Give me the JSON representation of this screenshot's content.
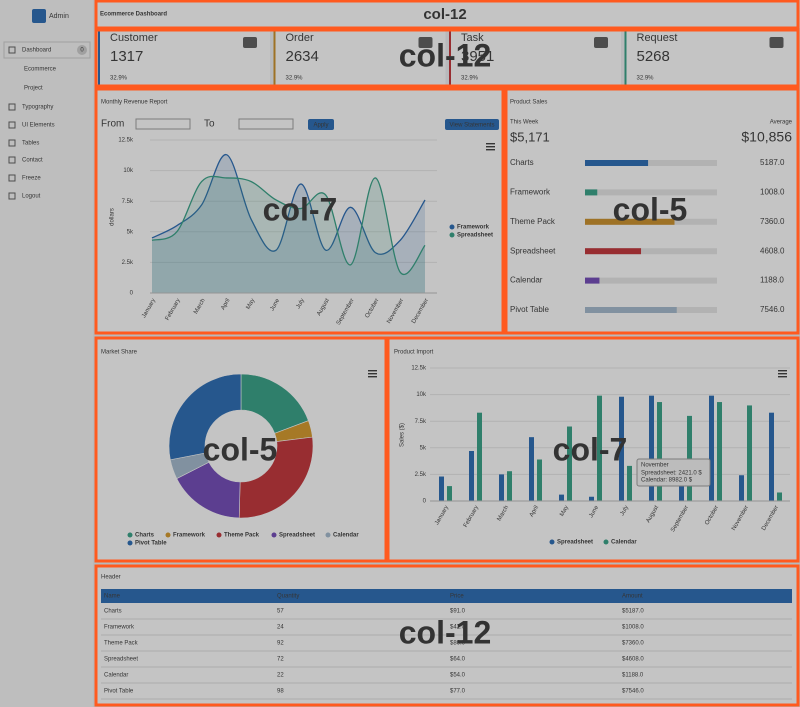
{
  "sidebar": {
    "brand": "Admin",
    "menu": [
      {
        "label": "Dashboard",
        "badge": "0"
      },
      {
        "label": "Ecommerce"
      },
      {
        "label": "Project"
      },
      {
        "label": "Typography"
      },
      {
        "label": "UI Elements"
      },
      {
        "label": "Tables"
      },
      {
        "label": "Contact"
      },
      {
        "label": "Freeze"
      },
      {
        "label": "Logout"
      }
    ]
  },
  "header": {
    "title": "Ecommerce Dashboard"
  },
  "stats": [
    {
      "label": "Customer",
      "value": "1317",
      "change": "32.9%",
      "color": "#1e63b0"
    },
    {
      "label": "Order",
      "value": "2634",
      "change": "32.9%",
      "color": "#c98a1e"
    },
    {
      "label": "Task",
      "value": "3951",
      "change": "32.9%",
      "color": "#c0282d"
    },
    {
      "label": "Request",
      "value": "5268",
      "change": "32.9%",
      "color": "#2a9d80"
    }
  ],
  "revenue_chart": {
    "type": "area",
    "title": "Monthly Revenue Report",
    "from_label": "From",
    "to_label": "To",
    "apply": "Apply",
    "view": "View Statements",
    "y_label": "dollars",
    "categories": [
      "January",
      "February",
      "March",
      "April",
      "May",
      "June",
      "July",
      "August",
      "September",
      "October",
      "November",
      "December"
    ],
    "ylim": [
      0,
      12500
    ],
    "yticks": [
      0,
      {
        "value": 2500,
        "label": "2.5k"
      },
      {
        "value": 5000,
        "label": "5k"
      },
      {
        "value": 7500,
        "label": "7.5k"
      },
      {
        "value": 10000,
        "label": "10k"
      },
      {
        "value": 12500,
        "label": "12.5k"
      }
    ],
    "grid": true,
    "series": [
      {
        "name": "Framework",
        "color": "#1e63b0",
        "values": [
          4500,
          5500,
          7200,
          11300,
          6000,
          3500,
          8900,
          3500,
          7000,
          3300,
          4300,
          7600
        ]
      },
      {
        "name": "Spreadsheet",
        "color": "#2a9d80",
        "values": [
          4300,
          5000,
          9100,
          9400,
          9100,
          7600,
          6900,
          8000,
          2300,
          9400,
          1700,
          3900
        ]
      }
    ]
  },
  "product_sales": {
    "title": "Product Sales",
    "this_week_label": "This Week",
    "this_week": "$5,171",
    "average_label": "Average",
    "average": {
      "value": 10856,
      "label": "$10,856"
    },
    "items": [
      {
        "name": "Charts",
        "value": 5187,
        "label": "5187.0",
        "color": "#1e63b0"
      },
      {
        "name": "Framework",
        "value": 1008,
        "label": "1008.0",
        "color": "#2a9d80"
      },
      {
        "name": "Theme Pack",
        "value": 7360,
        "label": "7360.0",
        "color": "#c98a1e"
      },
      {
        "name": "Spreadsheet",
        "value": 4608,
        "label": "4608.0",
        "color": "#c0282d"
      },
      {
        "name": "Calendar",
        "value": 1188,
        "label": "1188.0",
        "color": "#6a3fb5"
      },
      {
        "name": "Pivot Table",
        "value": 7546,
        "label": "7546.0",
        "color": "#9fb7cc"
      }
    ]
  },
  "market_share": {
    "type": "donut",
    "title": "Market Share",
    "categories": [
      "Charts",
      "Framework",
      "Theme Pack",
      "Spreadsheet",
      "Calendar",
      "Pivot Table"
    ],
    "values": [
      5187,
      1008,
      7360,
      4608,
      1188,
      7546
    ],
    "colors": [
      "#2a9d80",
      "#d4941e",
      "#c0282d",
      "#6a3fb5",
      "#9fb7cc",
      "#1e63b0"
    ]
  },
  "product_import": {
    "type": "bar",
    "title": "Product Import",
    "y_label": "Sales ($)",
    "categories": [
      "January",
      "February",
      "March",
      "April",
      "May",
      "June",
      "July",
      "August",
      "September",
      "October",
      "November",
      "December"
    ],
    "ylim": [
      0,
      12500
    ],
    "yticks": [
      0,
      {
        "value": 2500,
        "label": "2.5k"
      },
      {
        "value": 5000,
        "label": "5k"
      },
      {
        "value": 7500,
        "label": "7.5k"
      },
      {
        "value": 10000,
        "label": "10k"
      },
      {
        "value": 12500,
        "label": "12.5k"
      }
    ],
    "grid": true,
    "series": [
      {
        "name": "Spreadsheet",
        "color": "#1e63b0",
        "values": [
          2300,
          4700,
          2500,
          6000,
          600,
          400,
          9800,
          9900,
          3000,
          9900,
          2421,
          8300
        ]
      },
      {
        "name": "Calendar",
        "color": "#2a9d80",
        "values": [
          1400,
          8300,
          2800,
          3900,
          7000,
          9900,
          3300,
          9300,
          8000,
          9300,
          8982,
          800
        ]
      }
    ],
    "tooltip": {
      "title": "November",
      "lines": [
        "Spreadsheet: 2421.0 $",
        "Calendar: 8982.0 $"
      ]
    }
  },
  "table": {
    "title": "Header",
    "columns": [
      "Name",
      "Quantity",
      "Price",
      "Amount"
    ],
    "rows": [
      [
        "Charts",
        "57",
        "$91.0",
        "$5187.0"
      ],
      [
        "Framework",
        "24",
        "$42.0",
        "$1008.0"
      ],
      [
        "Theme Pack",
        "92",
        "$80.0",
        "$7360.0"
      ],
      [
        "Spreadsheet",
        "72",
        "$64.0",
        "$4608.0"
      ],
      [
        "Calendar",
        "22",
        "$54.0",
        "$1188.0"
      ],
      [
        "Pivot Table",
        "98",
        "$77.0",
        "$7546.0"
      ]
    ]
  },
  "grid_overlay": [
    {
      "label": "col-12"
    },
    {
      "label": "col-12"
    },
    {
      "label": "col-7"
    },
    {
      "label": "col-5"
    },
    {
      "label": "col-5"
    },
    {
      "label": "col-7"
    },
    {
      "label": "col-12"
    }
  ]
}
